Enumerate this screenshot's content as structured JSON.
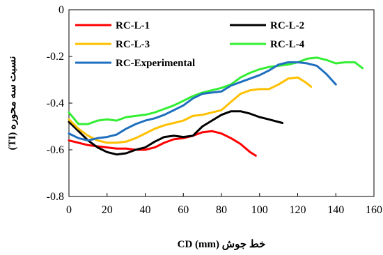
{
  "chart_data": {
    "type": "line",
    "xlabel": "خط جوش (mm) CD",
    "ylabel": "نسبت سه محوره (TI)",
    "xlim": [
      0,
      160
    ],
    "ylim": [
      -0.8,
      0
    ],
    "x_ticks": [
      "0",
      "20",
      "40",
      "60",
      "80",
      "100",
      "120",
      "140",
      "160"
    ],
    "y_ticks": [
      "0",
      "-0.2",
      "-0.4",
      "-0.6",
      "-0.8"
    ],
    "grid": false,
    "legend_position": "top",
    "series": [
      {
        "name": "RC-L-1",
        "color": "#ff0000",
        "points": [
          [
            0,
            -0.56
          ],
          [
            5,
            -0.57
          ],
          [
            10,
            -0.58
          ],
          [
            15,
            -0.585
          ],
          [
            20,
            -0.59
          ],
          [
            25,
            -0.595
          ],
          [
            30,
            -0.595
          ],
          [
            35,
            -0.6
          ],
          [
            40,
            -0.6
          ],
          [
            45,
            -0.59
          ],
          [
            50,
            -0.57
          ],
          [
            55,
            -0.555
          ],
          [
            60,
            -0.55
          ],
          [
            65,
            -0.54
          ],
          [
            70,
            -0.525
          ],
          [
            75,
            -0.52
          ],
          [
            80,
            -0.53
          ],
          [
            85,
            -0.55
          ],
          [
            90,
            -0.575
          ],
          [
            95,
            -0.61
          ],
          [
            98,
            -0.625
          ]
        ]
      },
      {
        "name": "RC-L-2",
        "color": "#000000",
        "points": [
          [
            0,
            -0.48
          ],
          [
            5,
            -0.52
          ],
          [
            10,
            -0.56
          ],
          [
            15,
            -0.59
          ],
          [
            20,
            -0.61
          ],
          [
            25,
            -0.62
          ],
          [
            30,
            -0.615
          ],
          [
            35,
            -0.6
          ],
          [
            40,
            -0.59
          ],
          [
            45,
            -0.565
          ],
          [
            50,
            -0.545
          ],
          [
            55,
            -0.54
          ],
          [
            60,
            -0.545
          ],
          [
            65,
            -0.54
          ],
          [
            70,
            -0.5
          ],
          [
            75,
            -0.475
          ],
          [
            80,
            -0.45
          ],
          [
            85,
            -0.435
          ],
          [
            90,
            -0.435
          ],
          [
            95,
            -0.445
          ],
          [
            100,
            -0.46
          ],
          [
            105,
            -0.47
          ],
          [
            112,
            -0.485
          ]
        ]
      },
      {
        "name": "RC-L-3",
        "color": "#ffc000",
        "points": [
          [
            0,
            -0.47
          ],
          [
            5,
            -0.51
          ],
          [
            10,
            -0.54
          ],
          [
            15,
            -0.56
          ],
          [
            20,
            -0.57
          ],
          [
            25,
            -0.57
          ],
          [
            30,
            -0.565
          ],
          [
            35,
            -0.55
          ],
          [
            40,
            -0.53
          ],
          [
            45,
            -0.51
          ],
          [
            50,
            -0.495
          ],
          [
            55,
            -0.485
          ],
          [
            60,
            -0.475
          ],
          [
            65,
            -0.455
          ],
          [
            70,
            -0.45
          ],
          [
            75,
            -0.44
          ],
          [
            80,
            -0.43
          ],
          [
            85,
            -0.395
          ],
          [
            90,
            -0.36
          ],
          [
            95,
            -0.345
          ],
          [
            100,
            -0.34
          ],
          [
            105,
            -0.34
          ],
          [
            110,
            -0.32
          ],
          [
            115,
            -0.295
          ],
          [
            120,
            -0.29
          ],
          [
            124,
            -0.31
          ],
          [
            127,
            -0.33
          ]
        ]
      },
      {
        "name": "RC-L-4",
        "color": "#33ee33",
        "points": [
          [
            0,
            -0.44
          ],
          [
            5,
            -0.49
          ],
          [
            10,
            -0.49
          ],
          [
            15,
            -0.475
          ],
          [
            20,
            -0.47
          ],
          [
            25,
            -0.475
          ],
          [
            30,
            -0.46
          ],
          [
            35,
            -0.455
          ],
          [
            40,
            -0.45
          ],
          [
            45,
            -0.44
          ],
          [
            50,
            -0.425
          ],
          [
            55,
            -0.41
          ],
          [
            60,
            -0.39
          ],
          [
            65,
            -0.37
          ],
          [
            70,
            -0.355
          ],
          [
            75,
            -0.345
          ],
          [
            80,
            -0.335
          ],
          [
            85,
            -0.32
          ],
          [
            90,
            -0.29
          ],
          [
            95,
            -0.27
          ],
          [
            100,
            -0.255
          ],
          [
            105,
            -0.245
          ],
          [
            110,
            -0.24
          ],
          [
            115,
            -0.235
          ],
          [
            120,
            -0.225
          ],
          [
            125,
            -0.21
          ],
          [
            130,
            -0.205
          ],
          [
            135,
            -0.215
          ],
          [
            140,
            -0.23
          ],
          [
            145,
            -0.225
          ],
          [
            150,
            -0.225
          ],
          [
            154,
            -0.25
          ]
        ]
      },
      {
        "name": "RC-Experimental",
        "color": "#1f6fbf",
        "points": [
          [
            0,
            -0.53
          ],
          [
            5,
            -0.55
          ],
          [
            10,
            -0.56
          ],
          [
            15,
            -0.55
          ],
          [
            20,
            -0.545
          ],
          [
            25,
            -0.535
          ],
          [
            30,
            -0.51
          ],
          [
            35,
            -0.49
          ],
          [
            40,
            -0.475
          ],
          [
            45,
            -0.465
          ],
          [
            50,
            -0.45
          ],
          [
            55,
            -0.43
          ],
          [
            60,
            -0.41
          ],
          [
            65,
            -0.38
          ],
          [
            70,
            -0.36
          ],
          [
            75,
            -0.355
          ],
          [
            80,
            -0.35
          ],
          [
            85,
            -0.325
          ],
          [
            90,
            -0.31
          ],
          [
            95,
            -0.295
          ],
          [
            100,
            -0.28
          ],
          [
            105,
            -0.26
          ],
          [
            110,
            -0.235
          ],
          [
            115,
            -0.225
          ],
          [
            120,
            -0.225
          ],
          [
            125,
            -0.23
          ],
          [
            130,
            -0.24
          ],
          [
            135,
            -0.275
          ],
          [
            140,
            -0.32
          ]
        ]
      }
    ]
  }
}
